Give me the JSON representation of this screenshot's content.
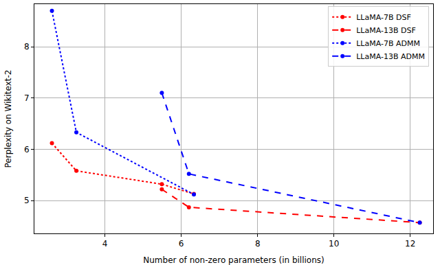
{
  "chart_data": {
    "type": "line",
    "x_label": "Number of non-zero parameters (in billions)",
    "y_label": "Perplexity on Wikitext-2",
    "xlim": [
      2.15,
      12.6
    ],
    "xticks": [
      4,
      6,
      8,
      10,
      12
    ],
    "ylim": [
      4.36,
      8.83
    ],
    "yticks": [
      5,
      6,
      7,
      8
    ],
    "grid": true,
    "legend": "upper right",
    "marker": "circle",
    "series": [
      {
        "name": "LLaMA-7B DSF",
        "color": "#ff0000",
        "line_style": "dotted",
        "x": [
          2.61,
          3.25,
          5.49,
          6.33
        ],
        "values": [
          6.12,
          5.58,
          5.32,
          5.13
        ]
      },
      {
        "name": "LLaMA-13B DSF",
        "color": "#ff0000",
        "line_style": "dashed",
        "x": [
          5.49,
          6.2,
          12.25
        ],
        "values": [
          5.22,
          4.87,
          4.57
        ]
      },
      {
        "name": "LLaMA-7B ADMM",
        "color": "#0000ff",
        "line_style": "dotted",
        "x": [
          2.61,
          3.25,
          6.33
        ],
        "values": [
          8.7,
          6.33,
          5.12
        ]
      },
      {
        "name": "LLaMA-13B ADMM",
        "color": "#0000ff",
        "line_style": "dashed",
        "x": [
          5.49,
          6.2,
          12.25
        ],
        "values": [
          7.1,
          5.52,
          4.57
        ]
      }
    ]
  }
}
